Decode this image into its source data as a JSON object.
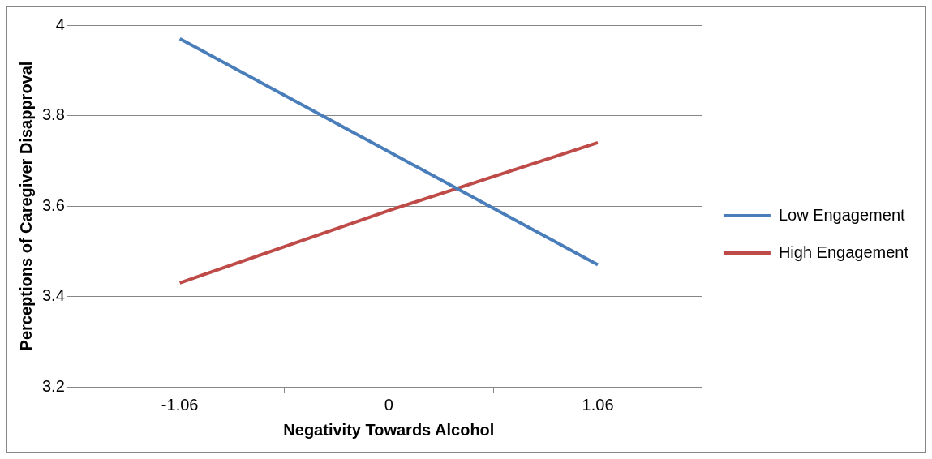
{
  "chart_data": {
    "type": "line",
    "xlabel": "Negativity Towards Alcohol",
    "ylabel": "Perceptions of Caregiver Disapproval",
    "categories": [
      "-1.06",
      "0",
      "1.06"
    ],
    "series": [
      {
        "name": "Low Engagement",
        "color": "#4a7ebb",
        "values": [
          3.97,
          3.72,
          3.47
        ]
      },
      {
        "name": "High Engagement",
        "color": "#be4b48",
        "values": [
          3.43,
          3.59,
          3.74
        ]
      }
    ],
    "ylim": [
      3.2,
      4
    ],
    "yticks": [
      3.2,
      3.4,
      3.6,
      3.8,
      4
    ],
    "grid": "y",
    "legend": "right",
    "marker": "none",
    "line_style": "solid"
  }
}
